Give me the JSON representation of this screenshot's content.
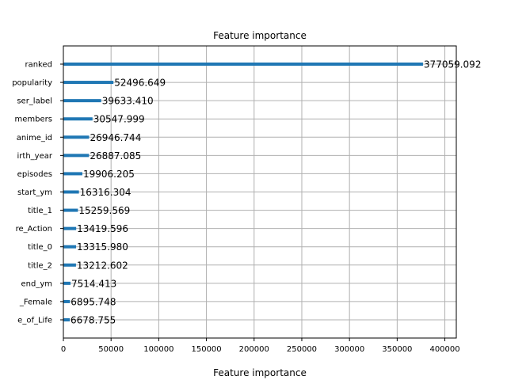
{
  "chart_data": {
    "type": "bar",
    "orientation": "horizontal",
    "title": "Feature importance",
    "xlabel": "Feature importance",
    "ylabel": "",
    "xlim": [
      0,
      412000
    ],
    "xticks": [
      0,
      50000,
      100000,
      150000,
      200000,
      250000,
      300000,
      350000,
      400000
    ],
    "grid": true,
    "bar_color": "#1f77b4",
    "categories": [
      "ranked",
      "popularity",
      "user_label",
      "members",
      "anime_id",
      "birth_year",
      "episodes",
      "start_ym",
      "title_1",
      "genre_Action",
      "title_0",
      "title_2",
      "end_ym",
      "gender_Female",
      "genre_Slice_of_Life"
    ],
    "category_labels": [
      "ranked",
      "popularity",
      "ser_label",
      "members",
      "anime_id",
      "irth_year",
      "episodes",
      "start_ym",
      "title_1",
      "re_Action",
      "title_0",
      "title_2",
      "end_ym",
      "_Female",
      "e_of_Life"
    ],
    "values": [
      377059.092,
      52496.649,
      39633.41,
      30547.999,
      26946.744,
      26887.085,
      19906.205,
      16316.304,
      15259.569,
      13419.596,
      13315.98,
      13212.602,
      7514.413,
      6895.748,
      6678.755
    ],
    "value_labels": [
      "377059.092",
      "52496.649",
      "39633.410",
      "30547.999",
      "26946.744",
      "26887.085",
      "19906.205",
      "16316.304",
      "15259.569",
      "13419.596",
      "13315.980",
      "13212.602",
      "7514.413",
      "6895.748",
      "6678.755"
    ]
  }
}
